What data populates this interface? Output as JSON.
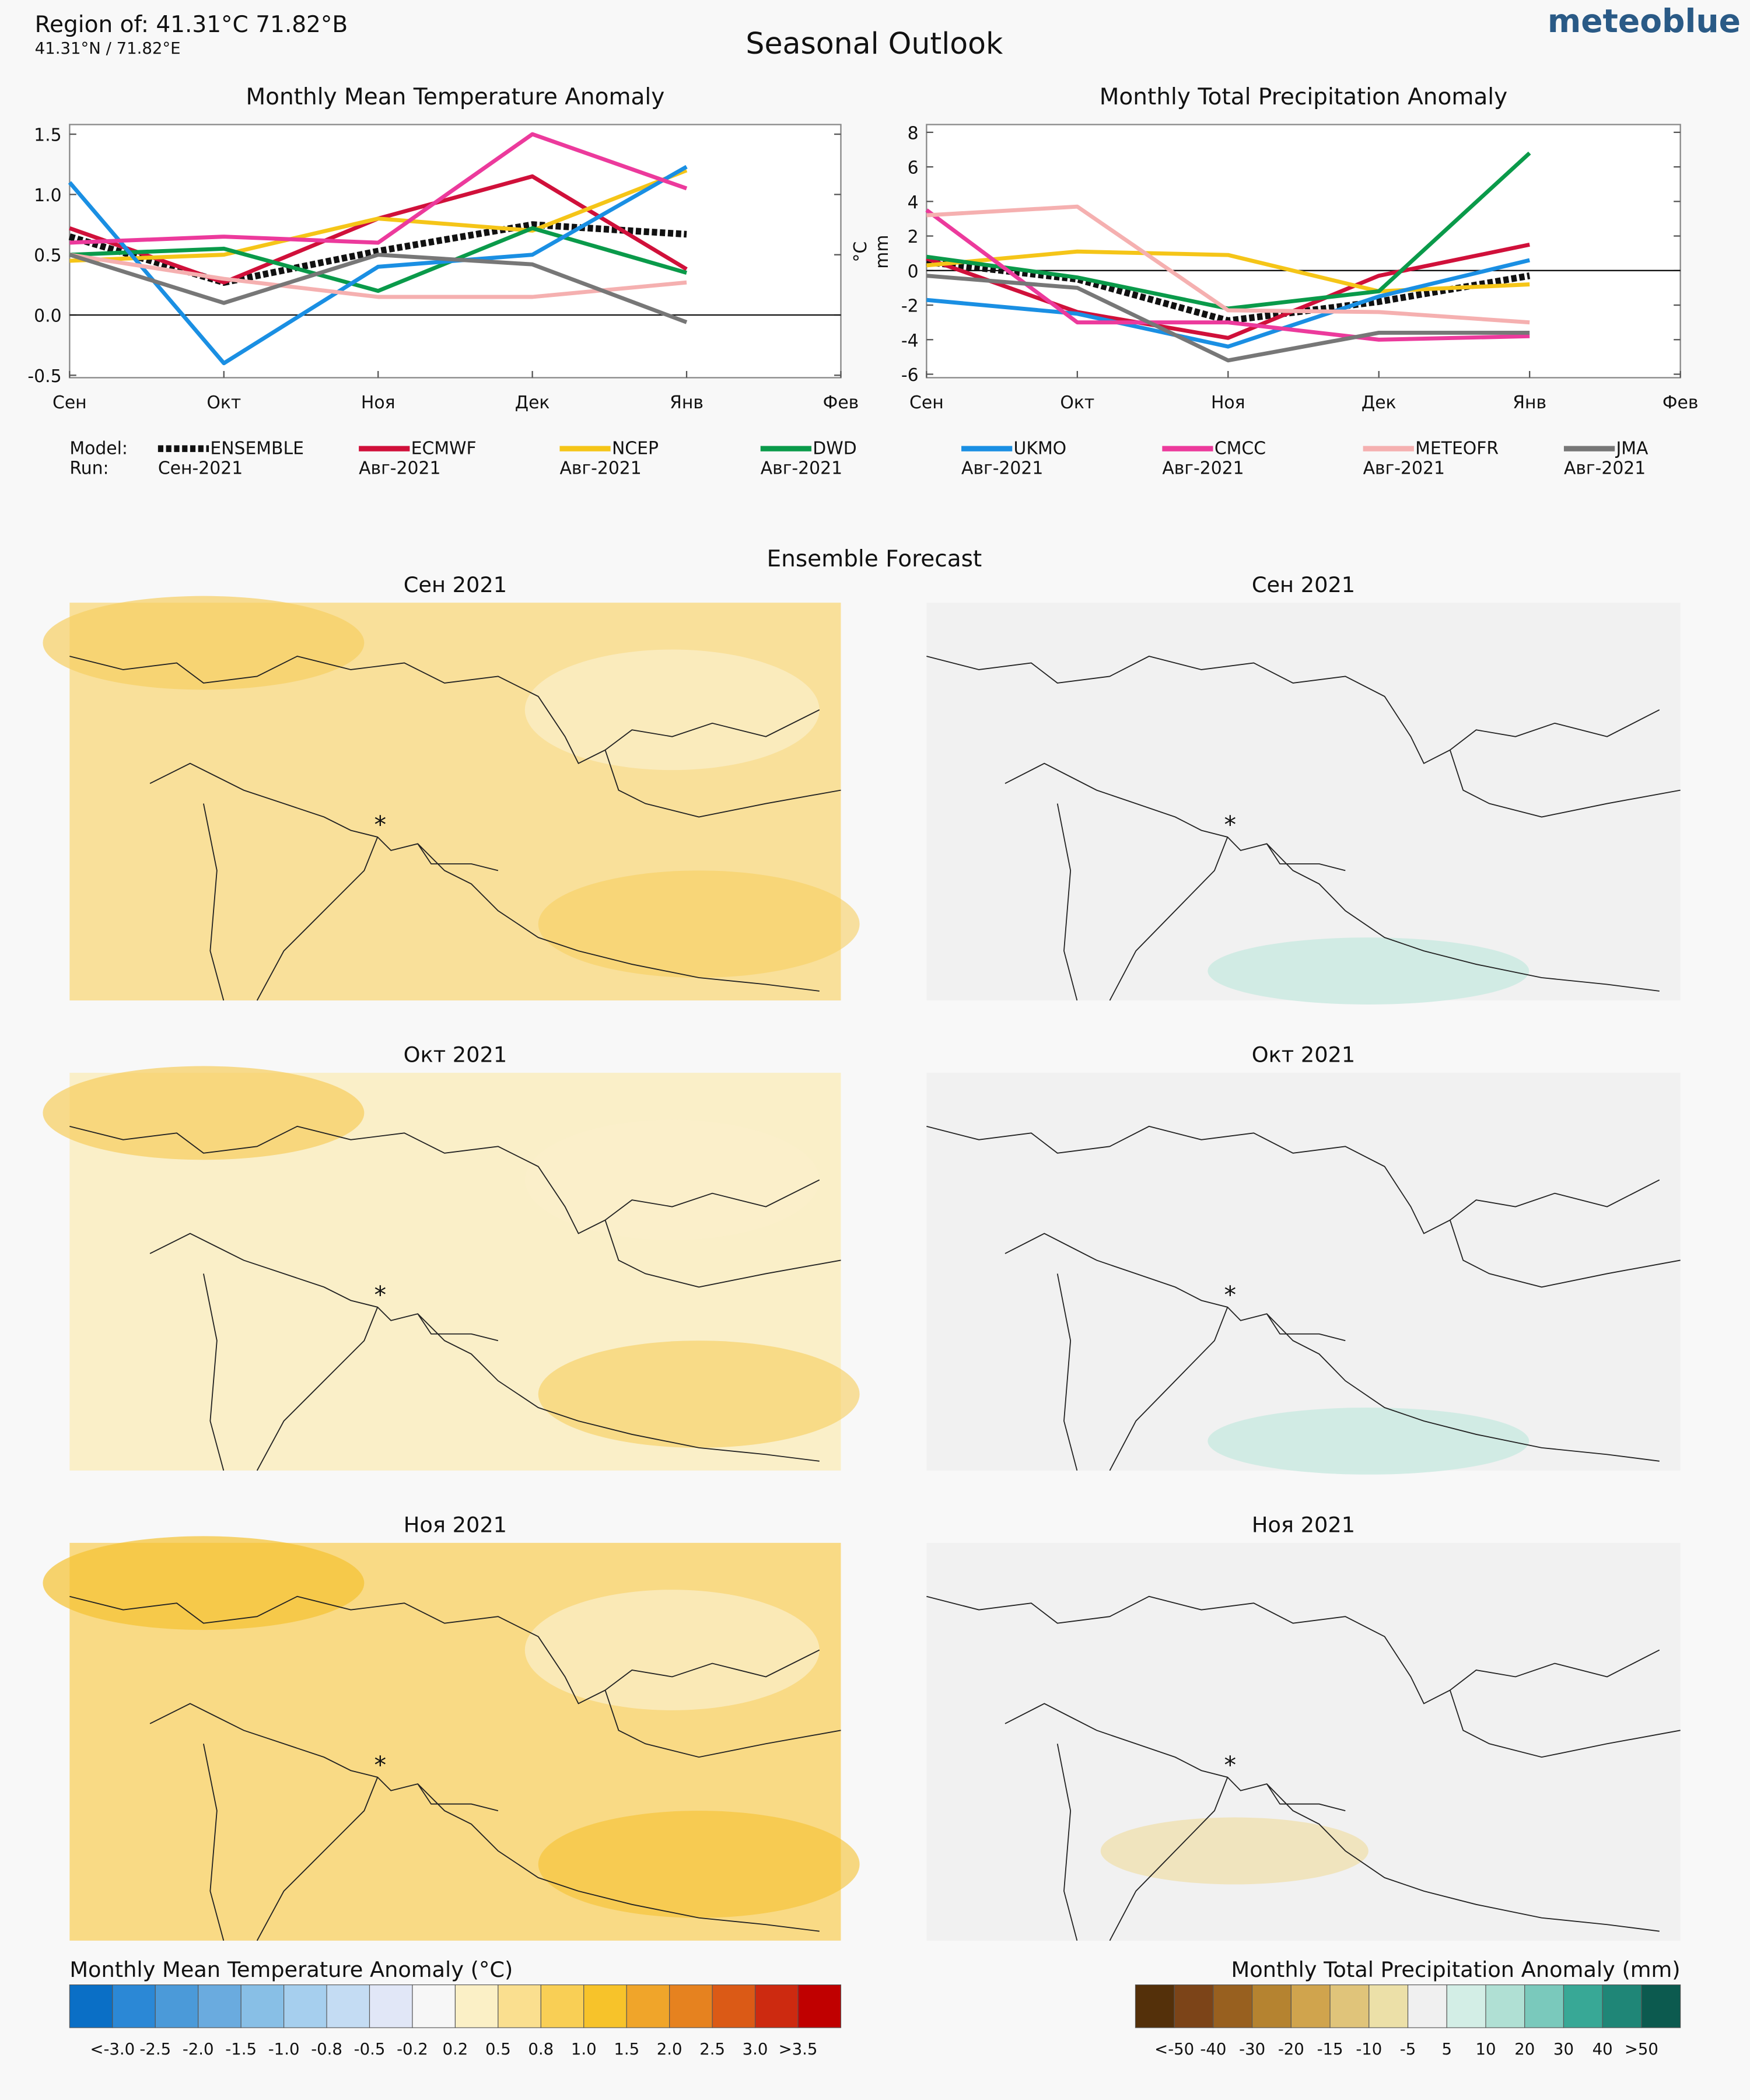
{
  "header": {
    "region": "Region of: 41.31°C 71.82°B",
    "coords": "41.31°N / 71.82°E",
    "title": "Seasonal Outlook",
    "brand": "meteoblue"
  },
  "legend": {
    "model_label": "Model:",
    "run_label": "Run:"
  },
  "chart_data": [
    {
      "type": "line",
      "title": "Monthly Mean Temperature Anomaly",
      "categories": [
        "Сен",
        "Окт",
        "Ноя",
        "Дек",
        "Янв",
        "Фев"
      ],
      "ylim": [
        -0.52,
        1.58
      ],
      "yticks": [
        -0.5,
        {
          "value": 0,
          "label": "0.0"
        },
        0.5,
        {
          "value": 1,
          "label": "1.0"
        },
        1.5
      ],
      "series": [
        {
          "name": "ENSEMBLE",
          "run": "Сен-2021",
          "color": "#111111",
          "dashed": true,
          "values": [
            0.65,
            0.27,
            0.53,
            0.75,
            0.67,
            null
          ]
        },
        {
          "name": "ECMWF",
          "run": "Авг-2021",
          "color": "#d0103a",
          "values": [
            0.72,
            0.27,
            0.8,
            1.15,
            0.38,
            null
          ]
        },
        {
          "name": "NCEP",
          "run": "Авг-2021",
          "color": "#f5c518",
          "values": [
            0.45,
            0.5,
            0.8,
            0.7,
            1.2,
            null
          ]
        },
        {
          "name": "DWD",
          "run": "Авг-2021",
          "color": "#0a9a4a",
          "values": [
            0.5,
            0.55,
            0.2,
            0.72,
            0.35,
            null
          ]
        },
        {
          "name": "UKMO",
          "run": "Авг-2021",
          "color": "#1a8fe3",
          "values": [
            1.1,
            -0.4,
            0.4,
            0.5,
            1.23,
            null
          ]
        },
        {
          "name": "CMCC",
          "run": "Авг-2021",
          "color": "#ec3a9c",
          "values": [
            0.6,
            0.65,
            0.6,
            1.5,
            1.05,
            null
          ]
        },
        {
          "name": "METEOFR",
          "run": "Авг-2021",
          "color": "#f5b0b0",
          "values": [
            0.5,
            0.3,
            0.15,
            0.15,
            0.27,
            null
          ]
        },
        {
          "name": "JMA",
          "run": "Авг-2021",
          "color": "#777777",
          "values": [
            0.5,
            0.1,
            0.5,
            0.42,
            -0.06,
            null
          ]
        }
      ]
    },
    {
      "type": "line",
      "title": "Monthly Total Precipitation Anomaly",
      "ylabels": [
        "°C",
        "mm"
      ],
      "categories": [
        "Сен",
        "Окт",
        "Ноя",
        "Дек",
        "Янв",
        "Фев"
      ],
      "ylim": [
        -6.2,
        8.45
      ],
      "yticks": [
        -6,
        -4,
        -2,
        0,
        2,
        4,
        6,
        8
      ],
      "series": [
        {
          "values": [
            0.5,
            -0.5,
            -2.9,
            -1.8,
            -0.3,
            null
          ]
        },
        {
          "values": [
            0.7,
            -2.4,
            -3.9,
            -0.3,
            1.5,
            null
          ]
        },
        {
          "values": [
            0.3,
            1.1,
            0.9,
            -1.2,
            -0.8,
            null
          ]
        },
        {
          "values": [
            0.8,
            -0.4,
            -2.2,
            -1.2,
            6.8,
            null
          ]
        },
        {
          "values": [
            -1.7,
            -2.5,
            -4.4,
            -1.5,
            0.6,
            null
          ]
        },
        {
          "values": [
            3.5,
            -3,
            -3,
            -4,
            -3.8,
            null
          ]
        },
        {
          "values": [
            3.2,
            3.7,
            -2.3,
            -2.4,
            -3,
            null
          ]
        },
        {
          "values": [
            -0.3,
            -1,
            -5.2,
            -3.6,
            -3.6,
            null
          ]
        }
      ]
    }
  ],
  "maps": {
    "title": "Ensemble Forecast",
    "panels": [
      "Сен 2021",
      "Сен 2021",
      "Окт 2021",
      "Окт 2021",
      "Ноя 2021",
      "Ноя 2021"
    ]
  },
  "colorbars": [
    {
      "title": "Monthly Mean Temperature Anomaly (°C)",
      "labels": [
        "<-3.0",
        "-2.5",
        "-2.0",
        "-1.5",
        "-1.0",
        "-0.8",
        "-0.5",
        "-0.2",
        "0.2",
        "0.5",
        "0.8",
        "1.0",
        "1.5",
        "2.0",
        "2.5",
        "3.0",
        ">3.5"
      ],
      "colors": [
        "#0a6fc6",
        "#2b88d6",
        "#4b9ad9",
        "#6aabdf",
        "#88bfe6",
        "#a6cfee",
        "#c4dcf3",
        "#e1e7f7",
        "#f7f7f7",
        "#fbf0c6",
        "#fadf8f",
        "#f9cf55",
        "#f7c32a",
        "#f0a52a",
        "#e6821f",
        "#db5a16",
        "#cd2a10",
        "#c00000"
      ]
    },
    {
      "title": "Monthly Total Precipitation Anomaly (mm)",
      "labels": [
        "<-50",
        "-40",
        "-30",
        "-20",
        "-15",
        "-10",
        "-5",
        "5",
        "10",
        "20",
        "30",
        "40",
        ">50"
      ],
      "colors": [
        "#54300a",
        "#7c4418",
        "#98601f",
        "#b58330",
        "#d0a44d",
        "#e0c47a",
        "#ece0a8",
        "#f0f0f0",
        "#d3eee6",
        "#b0e0d4",
        "#7ac9bc",
        "#38a896",
        "#1f8677",
        "#0c5a4f"
      ]
    }
  ]
}
